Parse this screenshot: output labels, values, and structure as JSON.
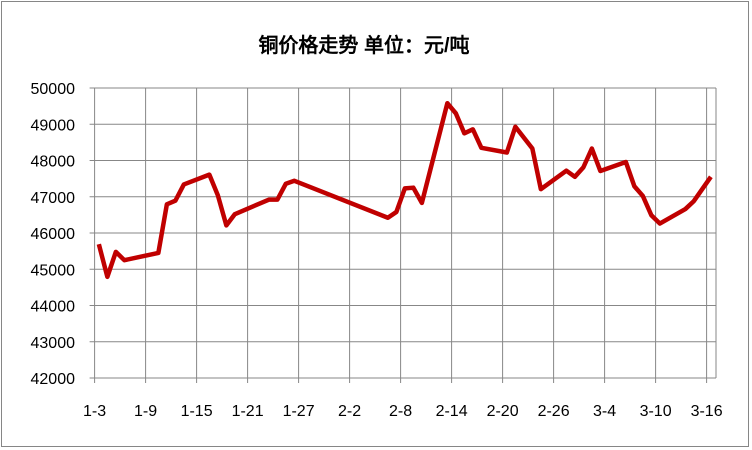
{
  "chart_data": {
    "type": "line",
    "title": "铜价格走势  单位：元/吨",
    "xlabel": "",
    "ylabel": "",
    "ylim": [
      42000,
      50000
    ],
    "yticks": [
      42000,
      43000,
      44000,
      45000,
      46000,
      47000,
      48000,
      49000,
      50000
    ],
    "xticks": [
      "1-3",
      "1-9",
      "1-15",
      "1-21",
      "1-27",
      "2-2",
      "2-8",
      "2-14",
      "2-20",
      "2-26",
      "3-4",
      "3-10",
      "3-16"
    ],
    "grid": true,
    "legend": "none",
    "line_color": "#C00000",
    "x": [
      "1-3",
      "1-4",
      "1-5",
      "1-6",
      "1-10",
      "1-11",
      "1-12",
      "1-13",
      "1-16",
      "1-17",
      "1-18",
      "1-19",
      "1-23",
      "1-24",
      "1-25",
      "1-26",
      "2-6",
      "2-7",
      "2-8",
      "2-9",
      "2-10",
      "2-13",
      "2-14",
      "2-15",
      "2-16",
      "2-17",
      "2-20",
      "2-21",
      "2-23",
      "2-24",
      "2-27",
      "2-28",
      "3-1",
      "3-2",
      "3-3",
      "3-6",
      "3-7",
      "3-8",
      "3-9",
      "3-10",
      "3-13",
      "3-14",
      "3-16"
    ],
    "values": [
      45690,
      44790,
      45480,
      45250,
      45450,
      46790,
      46890,
      47340,
      47610,
      47040,
      46210,
      46520,
      46920,
      46920,
      47360,
      47440,
      46420,
      46580,
      47230,
      47250,
      46830,
      49580,
      49300,
      48750,
      48860,
      48350,
      48220,
      48930,
      48330,
      47210,
      47720,
      47550,
      47810,
      48330,
      47710,
      47960,
      47290,
      47020,
      46490,
      46260,
      46660,
      46880,
      47550
    ]
  }
}
